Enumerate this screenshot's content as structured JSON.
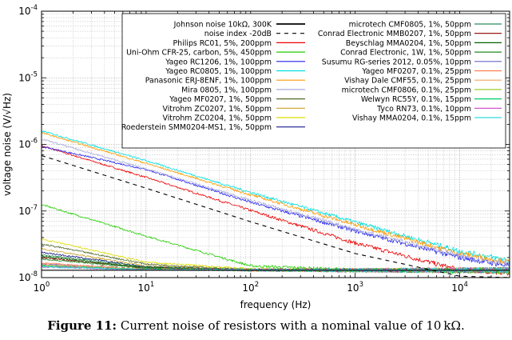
{
  "chart_data": {
    "type": "line",
    "xscale": "log",
    "yscale": "log",
    "xlim": [
      1,
      30000
    ],
    "ylim": [
      1e-08,
      0.0001
    ],
    "xlabel": "frequency (Hz)",
    "ylabel": "voltage noise (V/√Hz)",
    "grid": true,
    "legend_placement": "top (two columns)",
    "x_ticks": [
      {
        "value": 1,
        "base": "10",
        "exp": "0"
      },
      {
        "value": 10,
        "base": "10",
        "exp": "1"
      },
      {
        "value": 100,
        "base": "10",
        "exp": "2"
      },
      {
        "value": 1000,
        "base": "10",
        "exp": "3"
      },
      {
        "value": 10000,
        "base": "10",
        "exp": "4"
      }
    ],
    "y_ticks": [
      {
        "value": 1e-08,
        "base": "10",
        "exp": "-8"
      },
      {
        "value": 1e-07,
        "base": "10",
        "exp": "-7"
      },
      {
        "value": 1e-06,
        "base": "10",
        "exp": "-6"
      },
      {
        "value": 1e-05,
        "base": "10",
        "exp": "-5"
      },
      {
        "value": 0.0001,
        "base": "10",
        "exp": "-4"
      }
    ],
    "series": [
      {
        "name": "Johnson noise 10kΩ, 300K",
        "color": "#000000",
        "style": "solid",
        "x": [
          1,
          30000
        ],
        "y": [
          1.29e-08,
          1.29e-08
        ]
      },
      {
        "name": "noise index -20dB",
        "color": "#000000",
        "style": "dashed",
        "x": [
          1,
          10,
          100,
          1000,
          10000,
          30000
        ],
        "y": [
          6.8e-07,
          2.2e-07,
          6.9e-08,
          2.3e-08,
          1.05e-08,
          1e-08
        ]
      },
      {
        "name": "Philips RC01, 5%, 200ppm",
        "color": "#ee0000",
        "style": "solid",
        "x": [
          1,
          10,
          100,
          1000,
          10000,
          30000
        ],
        "y": [
          9.5e-07,
          3.2e-07,
          1.02e-07,
          3.3e-08,
          1.3e-08,
          1.2e-08
        ]
      },
      {
        "name": "Uni-Ohm CFR-25, carbon, 5%, 450ppm",
        "color": "#22cc00",
        "style": "solid",
        "x": [
          1,
          10,
          100,
          1000,
          10000,
          30000
        ],
        "y": [
          1.25e-07,
          4.2e-08,
          1.5e-08,
          1.3e-08,
          1.25e-08,
          1.25e-08
        ]
      },
      {
        "name": "Yageo RC1206, 1%, 100ppm",
        "color": "#2222ee",
        "style": "solid",
        "x": [
          1,
          10,
          100,
          1000,
          10000,
          30000
        ],
        "y": [
          9.3e-07,
          4.2e-07,
          1.35e-07,
          5e-08,
          2e-08,
          1.5e-08
        ]
      },
      {
        "name": "Yageo RC0805, 1%, 100ppm",
        "color": "#00e0e0",
        "style": "solid",
        "x": [
          1,
          10,
          100,
          1000,
          10000,
          30000
        ],
        "y": [
          1.6e-06,
          5.7e-07,
          1.9e-07,
          6.8e-08,
          2.5e-08,
          1.8e-08
        ]
      },
      {
        "name": "Panasonic ERJ-8ENF, 1%, 100ppm",
        "color": "#ff9900",
        "style": "solid",
        "x": [
          1,
          10,
          100,
          1000,
          10000,
          30000
        ],
        "y": [
          1.5e-06,
          5.2e-07,
          1.75e-07,
          6.2e-08,
          2.3e-08,
          1.7e-08
        ]
      },
      {
        "name": "Mira 0805, 1%, 100ppm",
        "color": "#aaaadd",
        "style": "solid",
        "x": [
          1,
          10,
          100,
          1000,
          10000,
          30000
        ],
        "y": [
          1.2e-06,
          4.3e-07,
          1.45e-07,
          5.3e-08,
          2.1e-08,
          1.6e-08
        ]
      },
      {
        "name": "Yageo MF0207, 1%, 50ppm",
        "color": "#556b2f",
        "style": "solid",
        "x": [
          1,
          10,
          100,
          1000,
          10000,
          30000
        ],
        "y": [
          3.2e-08,
          1.6e-08,
          1.3e-08,
          1.29e-08,
          1.29e-08,
          1.29e-08
        ]
      },
      {
        "name": "Vitrohm ZC0207, 1%, 50ppm",
        "color": "#c9a227",
        "style": "solid",
        "x": [
          1,
          10,
          100,
          1000,
          10000,
          30000
        ],
        "y": [
          2.7e-08,
          1.5e-08,
          1.3e-08,
          1.29e-08,
          1.29e-08,
          1.29e-08
        ]
      },
      {
        "name": "Vitrohm ZC0204, 1%, 50ppm",
        "color": "#dddd00",
        "style": "solid",
        "x": [
          1,
          10,
          100,
          1000,
          10000,
          30000
        ],
        "y": [
          3.8e-08,
          1.7e-08,
          1.35e-08,
          1.3e-08,
          1.29e-08,
          1.29e-08
        ]
      },
      {
        "name": "Roederstein SMM0204-MS1, 1%, 50ppm",
        "color": "#1a1a8c",
        "style": "solid",
        "x": [
          1,
          10,
          100,
          1000,
          10000,
          30000
        ],
        "y": [
          2.4e-08,
          1.45e-08,
          1.3e-08,
          1.29e-08,
          1.29e-08,
          1.29e-08
        ]
      },
      {
        "name": "microtech CMF0805, 1%, 50ppm",
        "color": "#2e8b57",
        "style": "solid",
        "x": [
          1,
          10,
          100,
          1000,
          10000,
          30000
        ],
        "y": [
          2.2e-08,
          1.45e-08,
          1.3e-08,
          1.29e-08,
          1.29e-08,
          1.29e-08
        ]
      },
      {
        "name": "Conrad Electronic MMB0207, 1%, 50ppm",
        "color": "#8b0000",
        "style": "solid",
        "x": [
          1,
          10,
          100,
          1000,
          10000,
          30000
        ],
        "y": [
          2e-08,
          1.4e-08,
          1.3e-08,
          1.29e-08,
          1.29e-08,
          1.29e-08
        ]
      },
      {
        "name": "Beyschlag MMA0204, 1%, 50ppm",
        "color": "#006400",
        "style": "solid",
        "x": [
          1,
          10,
          100,
          1000,
          10000,
          30000
        ],
        "y": [
          2.1e-08,
          1.4e-08,
          1.3e-08,
          1.29e-08,
          1.29e-08,
          1.29e-08
        ]
      },
      {
        "name": "Conrad Electronic, 1W, 1%, 50ppm",
        "color": "#228b22",
        "style": "solid",
        "x": [
          1,
          10,
          100,
          1000,
          10000,
          30000
        ],
        "y": [
          1.9e-08,
          1.38e-08,
          1.3e-08,
          1.29e-08,
          1.29e-08,
          1.29e-08
        ]
      },
      {
        "name": "Susumu RG-series 2012, 0.05%, 10ppm",
        "color": "#6666cc",
        "style": "solid",
        "x": [
          1,
          10,
          100,
          1000,
          10000,
          30000
        ],
        "y": [
          1.6e-08,
          1.33e-08,
          1.3e-08,
          1.29e-08,
          1.29e-08,
          1.29e-08
        ]
      },
      {
        "name": "Yageo MF0207, 0.1%, 25ppm",
        "color": "#ff7f50",
        "style": "solid",
        "x": [
          1,
          10,
          100,
          1000,
          10000,
          30000
        ],
        "y": [
          1.65e-08,
          1.33e-08,
          1.3e-08,
          1.29e-08,
          1.29e-08,
          1.29e-08
        ]
      },
      {
        "name": "Vishay Dale CMF55, 0.1%, 25ppm",
        "color": "#f4a460",
        "style": "solid",
        "x": [
          1,
          10,
          100,
          1000,
          10000,
          30000
        ],
        "y": [
          1.55e-08,
          1.32e-08,
          1.3e-08,
          1.29e-08,
          1.29e-08,
          1.29e-08
        ]
      },
      {
        "name": "microtech CMF0806, 0.1%, 25ppm",
        "color": "#9acd32",
        "style": "solid",
        "x": [
          1,
          10,
          100,
          1000,
          10000,
          30000
        ],
        "y": [
          1.5e-08,
          1.32e-08,
          1.3e-08,
          1.29e-08,
          1.29e-08,
          1.29e-08
        ]
      },
      {
        "name": "Welwyn RC55Y, 0.1%, 15ppm",
        "color": "#00cc66",
        "style": "solid",
        "x": [
          1,
          10,
          100,
          1000,
          10000,
          30000
        ],
        "y": [
          1.5e-08,
          1.32e-08,
          1.3e-08,
          1.29e-08,
          1.29e-08,
          1.29e-08
        ]
      },
      {
        "name": "Tyco RN73, 0.1%, 10ppm",
        "color": "#cc44cc",
        "style": "solid",
        "x": [
          1,
          10,
          100,
          1000,
          10000,
          30000
        ],
        "y": [
          1.45e-08,
          1.31e-08,
          1.3e-08,
          1.29e-08,
          1.29e-08,
          1.29e-08
        ]
      },
      {
        "name": "Vishay MMA0204, 0.1%, 15ppm",
        "color": "#33dddd",
        "style": "solid",
        "x": [
          1,
          10,
          100,
          1000,
          10000,
          30000
        ],
        "y": [
          1.45e-08,
          1.31e-08,
          1.3e-08,
          1.29e-08,
          1.29e-08,
          1.29e-08
        ]
      }
    ]
  },
  "caption": {
    "label": "Figure 11:",
    "text_main": " Current noise of resistors with a nominal value of ",
    "value": "10 kΩ",
    "period": "."
  }
}
